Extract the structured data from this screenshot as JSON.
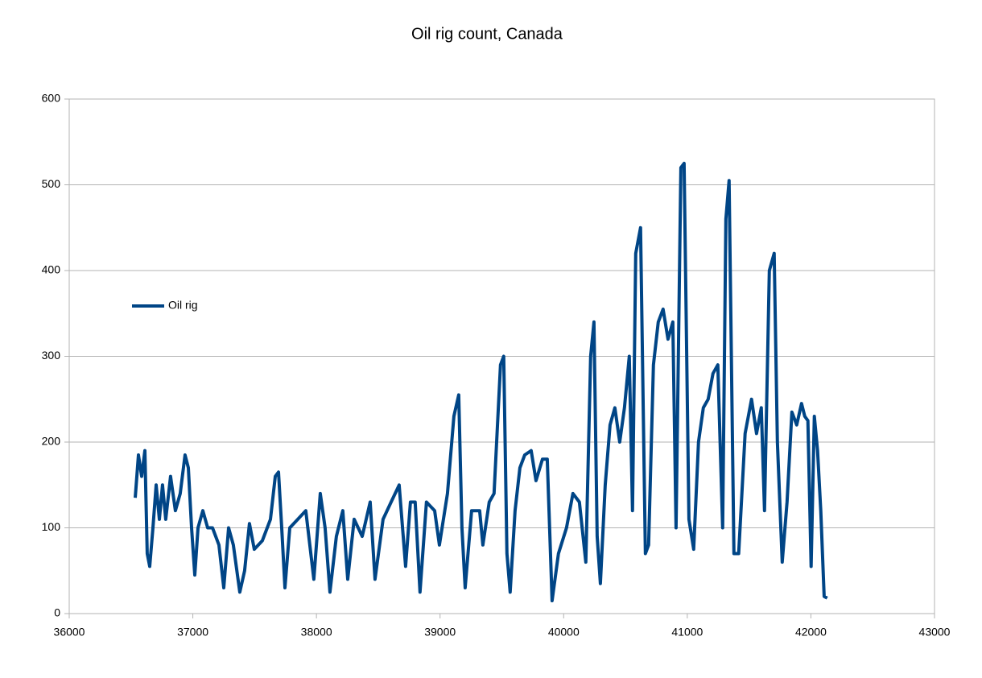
{
  "chart_data": {
    "type": "line",
    "title": "Oil rig count, Canada",
    "x": [
      36534,
      36560,
      36586,
      36612,
      36631,
      36651,
      36677,
      36703,
      36729,
      36755,
      36781,
      36820,
      36859,
      36898,
      36937,
      36964,
      36990,
      37016,
      37042,
      37081,
      37120,
      37159,
      37211,
      37250,
      37289,
      37328,
      37380,
      37419,
      37458,
      37497,
      37562,
      37628,
      37667,
      37693,
      37719,
      37745,
      37784,
      37849,
      37914,
      37979,
      38031,
      38070,
      38109,
      38161,
      38213,
      38253,
      38305,
      38370,
      38435,
      38474,
      38539,
      38604,
      38669,
      38721,
      38760,
      38799,
      38838,
      38890,
      38956,
      38995,
      39060,
      39112,
      39151,
      39177,
      39203,
      39255,
      39320,
      39346,
      39398,
      39437,
      39489,
      39515,
      39541,
      39567,
      39607,
      39646,
      39685,
      39737,
      39776,
      39828,
      39867,
      39906,
      39958,
      40023,
      40075,
      40127,
      40179,
      40218,
      40245,
      40271,
      40297,
      40336,
      40375,
      40414,
      40453,
      40492,
      40531,
      40557,
      40583,
      40622,
      40661,
      40687,
      40726,
      40765,
      40804,
      40844,
      40883,
      40909,
      40948,
      40974,
      41013,
      41052,
      41091,
      41130,
      41169,
      41208,
      41247,
      41286,
      41312,
      41338,
      41377,
      41416,
      41468,
      41520,
      41560,
      41599,
      41625,
      41664,
      41703,
      41729,
      41768,
      41807,
      41846,
      41885,
      41924,
      41950,
      41976,
      42002,
      42028,
      42054,
      42080,
      42107,
      42132
    ],
    "series": [
      {
        "name": "Oil rig",
        "color": "#004586",
        "values": [
          135,
          185,
          160,
          190,
          70,
          55,
          100,
          150,
          110,
          150,
          110,
          160,
          120,
          140,
          185,
          170,
          100,
          45,
          100,
          120,
          100,
          100,
          80,
          30,
          100,
          80,
          25,
          50,
          105,
          75,
          85,
          110,
          160,
          165,
          100,
          30,
          100,
          110,
          120,
          40,
          140,
          100,
          25,
          90,
          120,
          40,
          110,
          90,
          130,
          40,
          110,
          130,
          150,
          55,
          130,
          130,
          25,
          130,
          120,
          80,
          140,
          230,
          255,
          100,
          30,
          120,
          120,
          80,
          130,
          140,
          290,
          300,
          70,
          25,
          120,
          170,
          185,
          190,
          155,
          180,
          180,
          15,
          70,
          100,
          140,
          130,
          60,
          300,
          340,
          90,
          35,
          150,
          220,
          240,
          200,
          240,
          300,
          120,
          420,
          450,
          70,
          80,
          290,
          340,
          355,
          320,
          340,
          100,
          520,
          525,
          110,
          75,
          200,
          240,
          250,
          280,
          290,
          100,
          460,
          505,
          70,
          70,
          210,
          250,
          210,
          240,
          120,
          400,
          420,
          200,
          60,
          130,
          235,
          220,
          245,
          230,
          225,
          55,
          230,
          190,
          120,
          20,
          18
        ]
      }
    ],
    "xlim": [
      36000,
      43000
    ],
    "xticks": [
      36000,
      37000,
      38000,
      39000,
      40000,
      41000,
      42000,
      43000
    ],
    "ylim": [
      0,
      600
    ],
    "yticks": [
      0,
      100,
      200,
      300,
      400,
      500,
      600
    ],
    "grid": true,
    "legend": "left"
  }
}
